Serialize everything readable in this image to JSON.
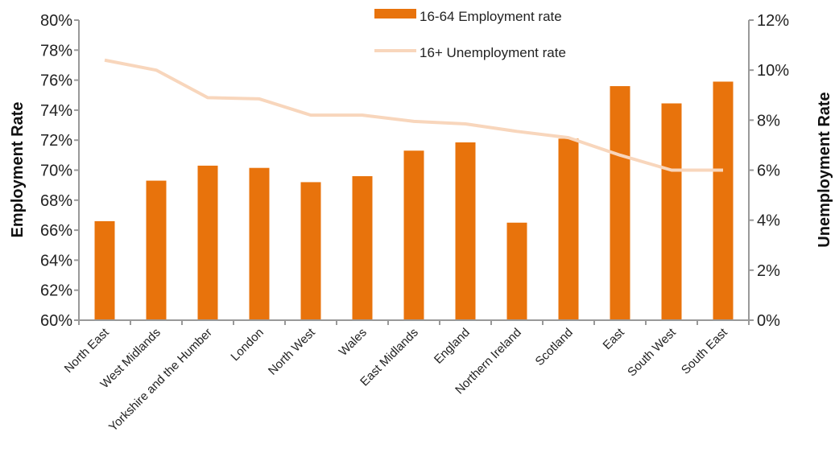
{
  "chart_data": {
    "type": "bar",
    "categories": [
      "North East",
      "West Midlands",
      "Yorkshire and the Humber",
      "London",
      "North West",
      "Wales",
      "East Midlands",
      "England",
      "Northern Ireland",
      "Scotland",
      "East",
      "South West",
      "South East"
    ],
    "series": [
      {
        "name": "16-64 Employment rate",
        "type": "bar",
        "axis": "left",
        "color": "#E8730C",
        "values": [
          66.6,
          69.3,
          70.3,
          70.15,
          69.2,
          69.6,
          71.3,
          71.85,
          66.5,
          72.1,
          75.6,
          74.45,
          75.9
        ]
      },
      {
        "name": "16+ Unemployment rate",
        "type": "line",
        "axis": "right",
        "color": "#F8D6BC",
        "values": [
          10.4,
          10.0,
          8.9,
          8.85,
          8.2,
          8.2,
          7.95,
          7.85,
          7.55,
          7.3,
          6.6,
          6.0,
          6.0
        ]
      }
    ],
    "ylabel": "Employment Rate",
    "y2label": "Unemployment Rate",
    "ylim": [
      60,
      80
    ],
    "y2lim": [
      0,
      12
    ],
    "yticks": [
      "60%",
      "62%",
      "64%",
      "66%",
      "68%",
      "70%",
      "72%",
      "74%",
      "76%",
      "78%",
      "80%"
    ],
    "y2ticks": [
      "0%",
      "2%",
      "4%",
      "6%",
      "8%",
      "10%",
      "12%"
    ],
    "grid": false,
    "legend_position": "top-center"
  }
}
